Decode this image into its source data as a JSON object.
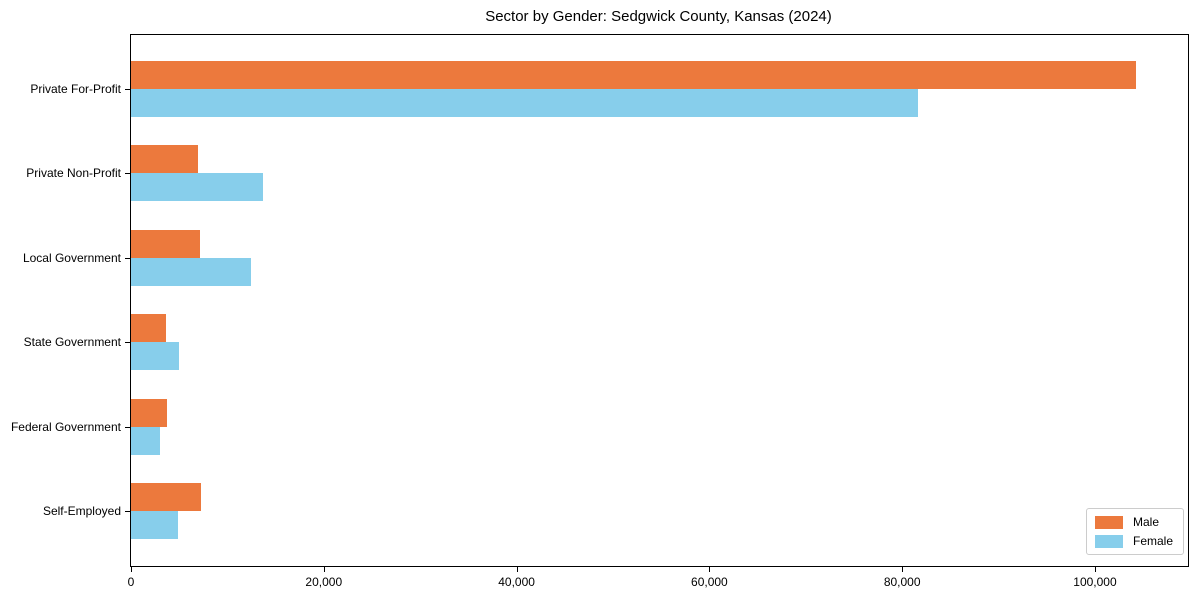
{
  "chart_data": {
    "type": "bar",
    "orientation": "horizontal",
    "title": "Sector by Gender: Sedgwick County, Kansas (2024)",
    "categories": [
      "Private For-Profit",
      "Private Non-Profit",
      "Local Government",
      "State Government",
      "Federal Government",
      "Self-Employed"
    ],
    "series": [
      {
        "name": "Male",
        "color": "#ec793d",
        "values": [
          104300,
          7000,
          7200,
          3600,
          3700,
          7300
        ]
      },
      {
        "name": "Female",
        "color": "#87ceeb",
        "values": [
          81600,
          13700,
          12400,
          5000,
          3000,
          4900
        ]
      }
    ],
    "xlabel": "",
    "ylabel": "",
    "xlim": [
      0,
      109650
    ],
    "xticks": [
      0,
      20000,
      40000,
      60000,
      80000,
      100000
    ],
    "xtick_labels": [
      "0",
      "20,000",
      "40,000",
      "60,000",
      "80,000",
      "100,000"
    ],
    "grid": false,
    "legend": {
      "position": "lower right",
      "entries": [
        "Male",
        "Female"
      ]
    }
  }
}
